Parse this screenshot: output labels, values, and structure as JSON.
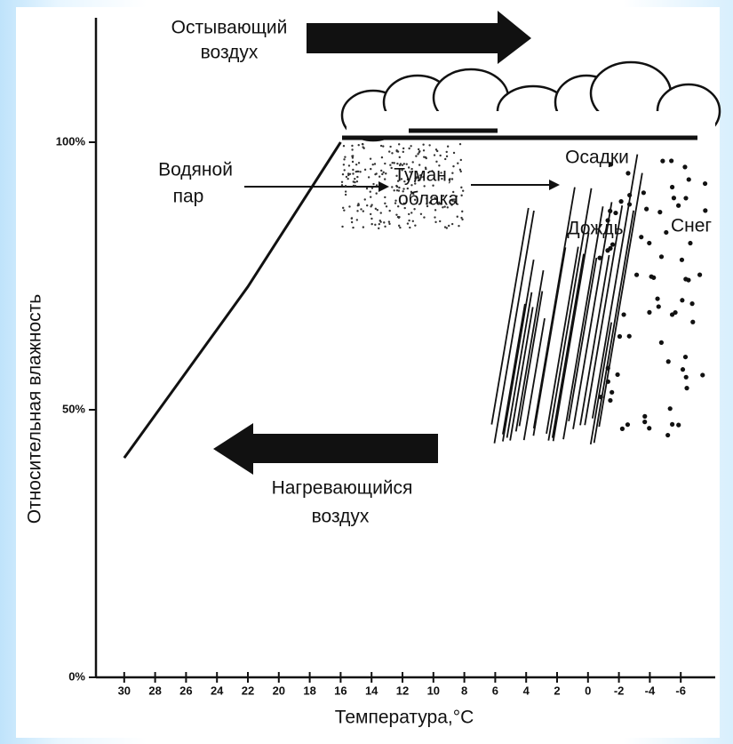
{
  "chart_data": {
    "type": "line",
    "x_label": "Температура,°С",
    "y_label": "Относительная влажность",
    "x": [
      30,
      28,
      26,
      24,
      22,
      20,
      18,
      16
    ],
    "series": [
      {
        "color": "#111111",
        "values": [
          41,
          49,
          57,
          65,
          73,
          82,
          91,
          100
        ]
      }
    ],
    "xlim": [
      32,
      -8
    ],
    "xticks": [
      30,
      28,
      26,
      24,
      22,
      20,
      18,
      16,
      14,
      12,
      10,
      8,
      6,
      4,
      2,
      0,
      -2,
      -4,
      -6
    ],
    "ylim": [
      0,
      100
    ],
    "yticks": [
      {
        "value": 0,
        "label": "0%"
      },
      {
        "value": 50,
        "label": "50%"
      },
      {
        "value": 100,
        "label": "100%"
      }
    ],
    "annotations": {
      "cooling_air": [
        "Остывающий",
        "воздух"
      ],
      "water_vapor": [
        "Водяной",
        "пар"
      ],
      "fog_clouds": [
        "Туман,",
        "облака"
      ],
      "precipitation": "Осадки",
      "rain": "Дождь",
      "snow": "Снег",
      "warming_air": [
        "Нагревающийся",
        "воздух"
      ]
    }
  }
}
